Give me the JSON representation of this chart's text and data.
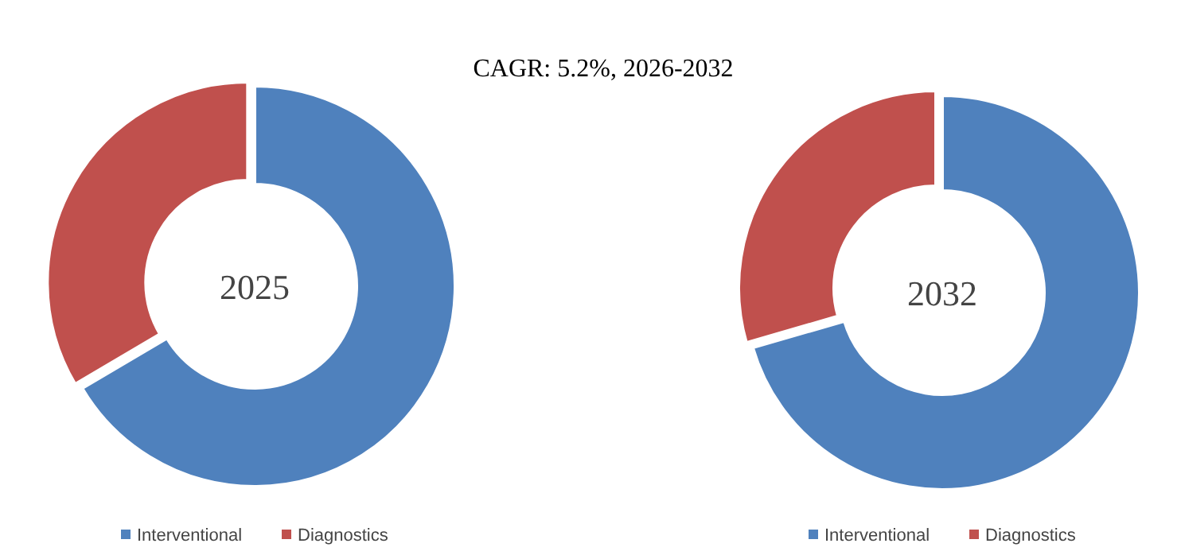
{
  "chart_data": [
    {
      "type": "donut",
      "title": "CAGR:  5.2%, 2026-2032",
      "categories": [
        "Interventional",
        "Diagnostics"
      ],
      "values": [
        66.5,
        33.5
      ],
      "colors": [
        "#4f81bd",
        "#c0504d"
      ],
      "annotations": [
        "2025"
      ],
      "legend": "bottom"
    },
    {
      "type": "donut",
      "categories": [
        "Interventional",
        "Diagnostics"
      ],
      "values": [
        70.5,
        29.5
      ],
      "colors": [
        "#4f81bd",
        "#c0504d"
      ],
      "annotations": [
        "2032"
      ],
      "legend": "bottom"
    }
  ]
}
